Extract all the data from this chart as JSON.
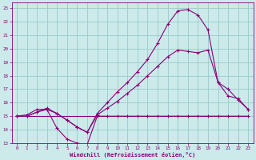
{
  "bg_color": "#cceaea",
  "grid_color": "#99cccc",
  "line_color": "#880077",
  "xlabel": "Windchill (Refroidissement éolien,°C)",
  "xlim": [
    -0.5,
    23.5
  ],
  "ylim": [
    13,
    23.4
  ],
  "xticks": [
    0,
    1,
    2,
    3,
    4,
    5,
    6,
    7,
    8,
    9,
    10,
    11,
    12,
    13,
    14,
    15,
    16,
    17,
    18,
    19,
    20,
    21,
    22,
    23
  ],
  "yticks": [
    13,
    14,
    15,
    16,
    17,
    18,
    19,
    20,
    21,
    22,
    23
  ],
  "series": [
    {
      "x": [
        0,
        1,
        2,
        3,
        4,
        5,
        6,
        7,
        8,
        9,
        10,
        11,
        12,
        13,
        14,
        15,
        16,
        17,
        18,
        19,
        20,
        21,
        22,
        23
      ],
      "y": [
        15,
        15,
        15,
        15,
        15,
        15,
        15,
        15,
        15,
        15,
        15,
        15,
        15,
        15,
        15,
        15,
        15,
        15,
        15,
        15,
        15,
        15,
        15,
        15
      ],
      "markers": false
    },
    {
      "x": [
        0,
        1,
        2,
        3,
        4,
        5,
        6,
        7,
        8,
        9,
        10,
        11,
        12,
        13,
        14,
        15,
        16,
        17,
        18,
        19,
        20,
        21,
        22,
        23
      ],
      "y": [
        15,
        15.1,
        15.5,
        15.5,
        14.1,
        13.3,
        13.0,
        12.9,
        15.0,
        15.0,
        15.0,
        15.0,
        15.0,
        15.0,
        15.0,
        15.0,
        15.0,
        15.0,
        15.0,
        15.0,
        15.0,
        15.0,
        15.0,
        15.0
      ],
      "markers": true
    },
    {
      "x": [
        0,
        1,
        2,
        3,
        4,
        5,
        6,
        7,
        8,
        9,
        10,
        11,
        12,
        13,
        14,
        15,
        16,
        17,
        18,
        19,
        20,
        21,
        22,
        23
      ],
      "y": [
        15,
        15,
        15.3,
        15.5,
        15.2,
        14.7,
        14.2,
        13.8,
        15.1,
        15.6,
        16.1,
        16.7,
        17.3,
        18.0,
        18.7,
        19.4,
        19.9,
        19.8,
        19.7,
        19.9,
        17.5,
        17.0,
        16.2,
        15.5
      ],
      "markers": true
    },
    {
      "x": [
        0,
        1,
        2,
        3,
        4,
        5,
        6,
        7,
        8,
        9,
        10,
        11,
        12,
        13,
        14,
        15,
        16,
        17,
        18,
        19,
        20,
        21,
        22,
        23
      ],
      "y": [
        15,
        15,
        15.3,
        15.6,
        15.2,
        14.7,
        14.2,
        13.8,
        15.2,
        16.0,
        16.8,
        17.5,
        18.3,
        19.2,
        20.4,
        21.8,
        22.8,
        22.9,
        22.5,
        21.4,
        17.5,
        16.5,
        16.3,
        15.5
      ],
      "markers": true
    }
  ]
}
